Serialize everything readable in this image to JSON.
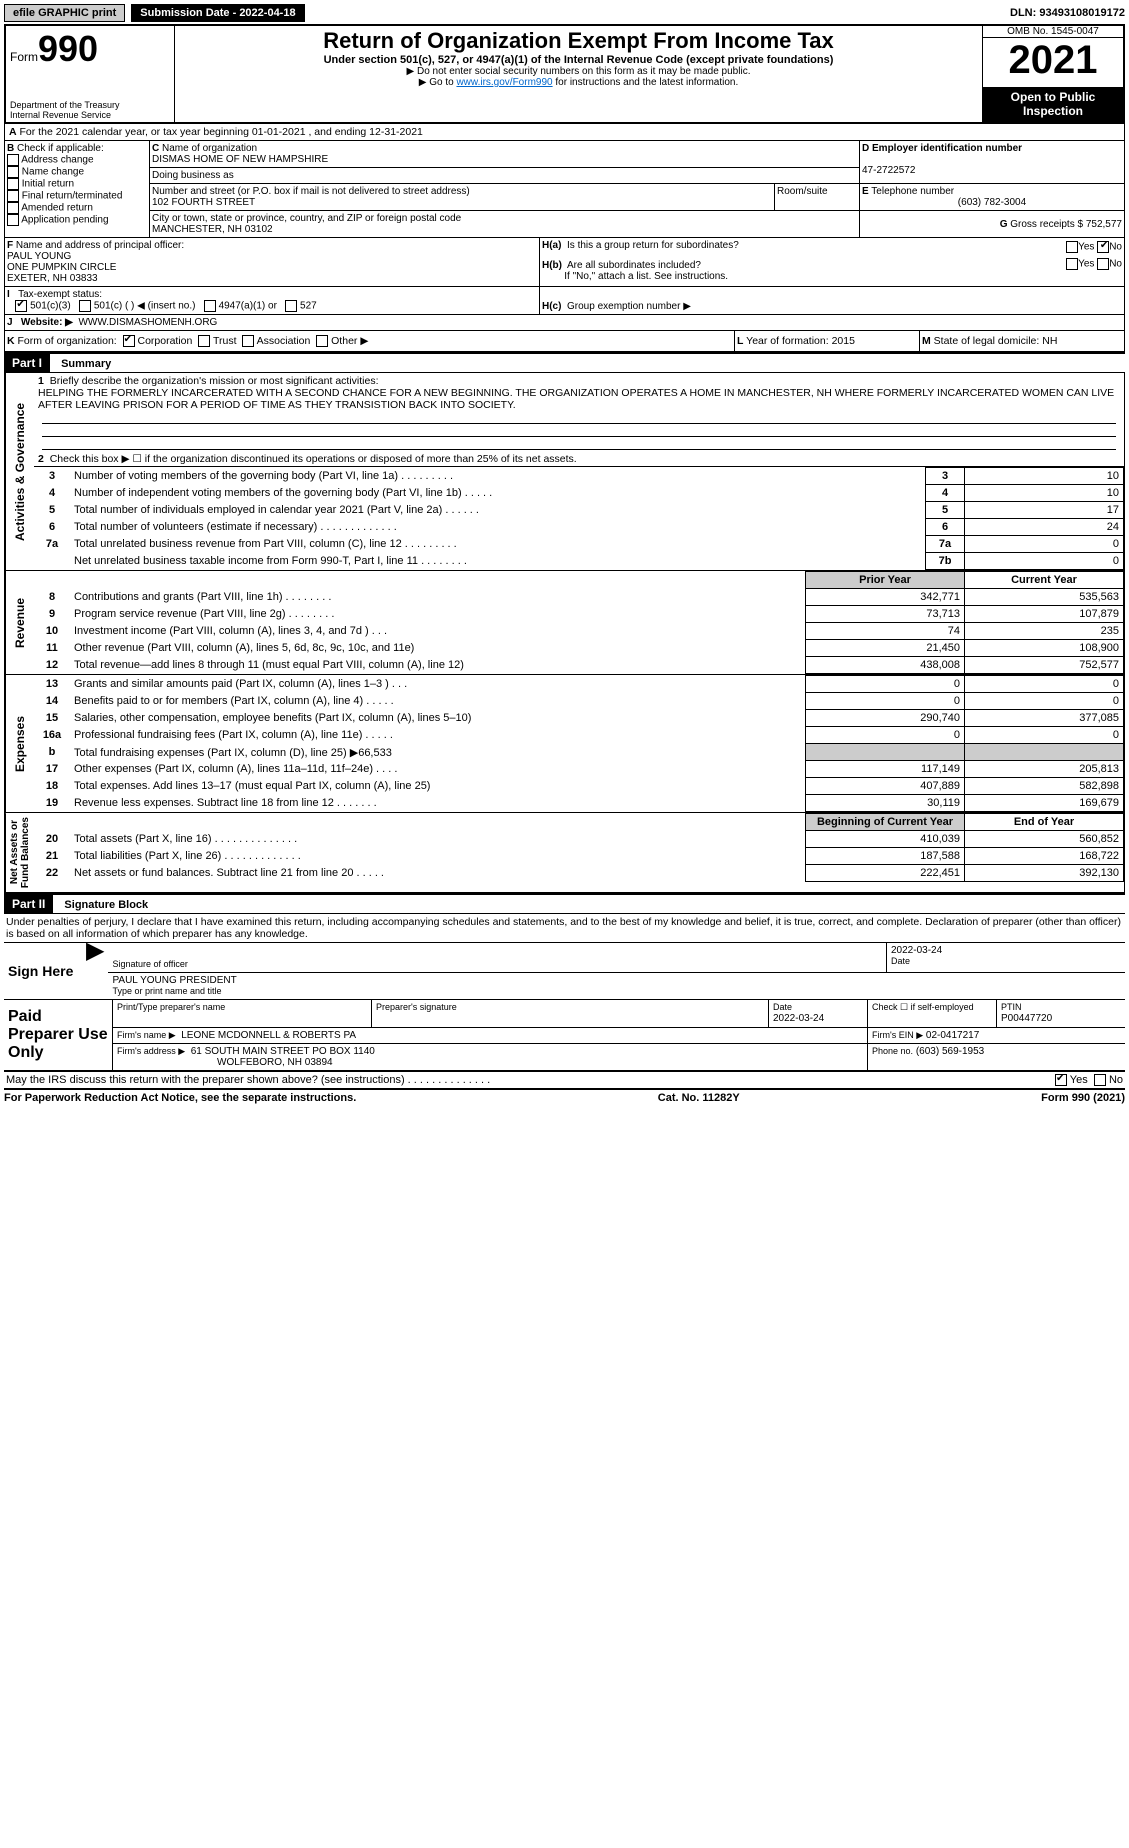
{
  "topbar": {
    "efile": "efile GRAPHIC print",
    "submission": "Submission Date - 2022-04-18",
    "dln": "DLN: 93493108019172"
  },
  "header": {
    "form_prefix": "Form",
    "form_no": "990",
    "title": "Return of Organization Exempt From Income Tax",
    "subtitle": "Under section 501(c), 527, or 4947(a)(1) of the Internal Revenue Code (except private foundations)",
    "note1": "▶ Do not enter social security numbers on this form as it may be made public.",
    "note2_pre": "▶ Go to ",
    "note2_link": "www.irs.gov/Form990",
    "note2_post": " for instructions and the latest information.",
    "dept": "Department of the Treasury\nInternal Revenue Service",
    "omb": "OMB No. 1545-0047",
    "year": "2021",
    "open": "Open to Public Inspection"
  },
  "A": {
    "line": "For the 2021 calendar year, or tax year beginning 01-01-2021    , and ending 12-31-2021"
  },
  "B": {
    "label": "Check if applicable:",
    "items": [
      "Address change",
      "Name change",
      "Initial return",
      "Final return/terminated",
      "Amended return",
      "Application pending"
    ]
  },
  "C": {
    "name_label": "Name of organization",
    "name": "DISMAS HOME OF NEW HAMPSHIRE",
    "dba_label": "Doing business as",
    "addr_label": "Number and street (or P.O. box if mail is not delivered to street address)",
    "room_label": "Room/suite",
    "addr": "102 FOURTH STREET",
    "city_label": "City or town, state or province, country, and ZIP or foreign postal code",
    "city": "MANCHESTER, NH  03102"
  },
  "D": {
    "label": "Employer identification number",
    "val": "47-2722572"
  },
  "E": {
    "label": "Telephone number",
    "val": "(603) 782-3004"
  },
  "G": {
    "label": "Gross receipts $",
    "val": "752,577"
  },
  "F": {
    "label": "Name and address of principal officer:",
    "name": "PAUL YOUNG",
    "addr1": "ONE PUMPKIN CIRCLE",
    "addr2": "EXETER, NH  03833"
  },
  "H": {
    "a": "Is this a group return for subordinates?",
    "b": "Are all subordinates included?",
    "b2": "If \"No,\" attach a list. See instructions.",
    "c": "Group exemption number ▶",
    "yes": "Yes",
    "no": "No"
  },
  "I": {
    "label": "Tax-exempt status:",
    "opts": [
      "501(c)(3)",
      "501(c) (  ) ◀ (insert no.)",
      "4947(a)(1) or",
      "527"
    ]
  },
  "J": {
    "label": "Website: ▶",
    "val": "WWW.DISMASHOMENH.ORG"
  },
  "K": {
    "label": "Form of organization:",
    "opts": [
      "Corporation",
      "Trust",
      "Association",
      "Other ▶"
    ]
  },
  "L": {
    "label": "Year of formation:",
    "val": "2015"
  },
  "M": {
    "label": "State of legal domicile:",
    "val": "NH"
  },
  "partI": {
    "title": "Part I",
    "subtitle": "Summary",
    "q1": "Briefly describe the organization's mission or most significant activities:",
    "mission": "HELPING THE FORMERLY INCARCERATED WITH A SECOND CHANCE FOR A NEW BEGINNING. THE ORGANIZATION OPERATES A HOME IN MANCHESTER, NH WHERE FORMERLY INCARCERATED WOMEN CAN LIVE AFTER LEAVING PRISON FOR A PERIOD OF TIME AS THEY TRANSISTION BACK INTO SOCIETY.",
    "q2": "Check this box ▶ ☐  if the organization discontinued its operations or disposed of more than 25% of its net assets.",
    "rows": [
      {
        "n": "3",
        "d": "Number of voting members of the governing body (Part VI, line 1a)  .    .    .    .    .    .    .    .    .",
        "b": "3",
        "v": "10"
      },
      {
        "n": "4",
        "d": "Number of independent voting members of the governing body (Part VI, line 1b)   .    .    .    .    .",
        "b": "4",
        "v": "10"
      },
      {
        "n": "5",
        "d": "Total number of individuals employed in calendar year 2021 (Part V, line 2a)   .    .    .    .    .    .",
        "b": "5",
        "v": "17"
      },
      {
        "n": "6",
        "d": "Total number of volunteers (estimate if necessary)    .    .    .    .    .    .    .    .    .    .    .    .    .",
        "b": "6",
        "v": "24"
      },
      {
        "n": "7a",
        "d": "Total unrelated business revenue from Part VIII, column (C), line 12   .    .    .    .    .    .    .    .    .",
        "b": "7a",
        "v": "0"
      },
      {
        "n": "",
        "d": "Net unrelated business taxable income from Form 990-T, Part I, line 11   .    .    .    .    .    .    .    .",
        "b": "7b",
        "v": "0"
      }
    ],
    "col_prior": "Prior Year",
    "col_current": "Current Year",
    "revenue": [
      {
        "n": "8",
        "d": "Contributions and grants (Part VIII, line 1h)   .    .    .    .    .    .    .    .",
        "p": "342,771",
        "c": "535,563"
      },
      {
        "n": "9",
        "d": "Program service revenue (Part VIII, line 2g)   .    .    .    .    .    .    .    .",
        "p": "73,713",
        "c": "107,879"
      },
      {
        "n": "10",
        "d": "Investment income (Part VIII, column (A), lines 3, 4, and 7d )   .    .    .",
        "p": "74",
        "c": "235"
      },
      {
        "n": "11",
        "d": "Other revenue (Part VIII, column (A), lines 5, 6d, 8c, 9c, 10c, and 11e)",
        "p": "21,450",
        "c": "108,900"
      },
      {
        "n": "12",
        "d": "Total revenue—add lines 8 through 11 (must equal Part VIII, column (A), line 12)",
        "p": "438,008",
        "c": "752,577"
      }
    ],
    "expenses": [
      {
        "n": "13",
        "d": "Grants and similar amounts paid (Part IX, column (A), lines 1–3 )  .    .    .",
        "p": "0",
        "c": "0"
      },
      {
        "n": "14",
        "d": "Benefits paid to or for members (Part IX, column (A), line 4)  .    .    .    .    .",
        "p": "0",
        "c": "0"
      },
      {
        "n": "15",
        "d": "Salaries, other compensation, employee benefits (Part IX, column (A), lines 5–10)",
        "p": "290,740",
        "c": "377,085"
      },
      {
        "n": "16a",
        "d": "Professional fundraising fees (Part IX, column (A), line 11e)   .    .    .    .    .",
        "p": "0",
        "c": "0"
      },
      {
        "n": "b",
        "d": "Total fundraising expenses (Part IX, column (D), line 25) ▶66,533",
        "p": "",
        "c": "",
        "shade": true
      },
      {
        "n": "17",
        "d": "Other expenses (Part IX, column (A), lines 11a–11d, 11f–24e)   .    .    .    .",
        "p": "117,149",
        "c": "205,813"
      },
      {
        "n": "18",
        "d": "Total expenses. Add lines 13–17 (must equal Part IX, column (A), line 25)",
        "p": "407,889",
        "c": "582,898"
      },
      {
        "n": "19",
        "d": "Revenue less expenses. Subtract line 18 from line 12   .    .    .    .    .    .    .",
        "p": "30,119",
        "c": "169,679"
      }
    ],
    "col_begin": "Beginning of Current Year",
    "col_end": "End of Year",
    "netassets": [
      {
        "n": "20",
        "d": "Total assets (Part X, line 16)  .    .    .    .    .    .    .    .    .    .    .    .    .    .",
        "p": "410,039",
        "c": "560,852"
      },
      {
        "n": "21",
        "d": "Total liabilities (Part X, line 26)  .    .    .    .    .    .    .    .    .    .    .    .    .",
        "p": "187,588",
        "c": "168,722"
      },
      {
        "n": "22",
        "d": "Net assets or fund balances. Subtract line 21 from line 20   .    .    .    .    .",
        "p": "222,451",
        "c": "392,130"
      }
    ],
    "vlabels": {
      "gov": "Activities & Governance",
      "rev": "Revenue",
      "exp": "Expenses",
      "net": "Net Assets or\nFund Balances"
    }
  },
  "partII": {
    "title": "Part II",
    "subtitle": "Signature Block",
    "decl": "Under penalties of perjury, I declare that I have examined this return, including accompanying schedules and statements, and to the best of my knowledge and belief, it is true, correct, and complete. Declaration of preparer (other than officer) is based on all information of which preparer has any knowledge.",
    "sign_here": "Sign Here",
    "sig_officer": "Signature of officer",
    "date_label": "Date",
    "sig_date": "2022-03-24",
    "name_title": "PAUL YOUNG  PRESIDENT",
    "type_name": "Type or print name and title",
    "paid": "Paid Preparer Use Only",
    "pp_name_label": "Print/Type preparer's name",
    "pp_sig_label": "Preparer's signature",
    "pp_date": "2022-03-24",
    "pp_self": "Check ☐ if self-employed",
    "ptin_label": "PTIN",
    "ptin": "P00447720",
    "firm_name_label": "Firm's name    ▶",
    "firm_name": "LEONE MCDONNELL & ROBERTS PA",
    "firm_ein_label": "Firm's EIN ▶",
    "firm_ein": "02-0417217",
    "firm_addr_label": "Firm's address ▶",
    "firm_addr": "61 SOUTH MAIN STREET PO BOX 1140",
    "firm_addr2": "WOLFEBORO, NH  03894",
    "phone_label": "Phone no.",
    "phone": "(603) 569-1953",
    "discuss": "May the IRS discuss this return with the preparer shown above? (see instructions)   .    .    .    .    .    .    .    .    .    .    .    .    .    .",
    "yes": "Yes",
    "no": "No"
  },
  "footer": {
    "pra": "For Paperwork Reduction Act Notice, see the separate instructions.",
    "cat": "Cat. No. 11282Y",
    "form": "Form 990 (2021)"
  }
}
